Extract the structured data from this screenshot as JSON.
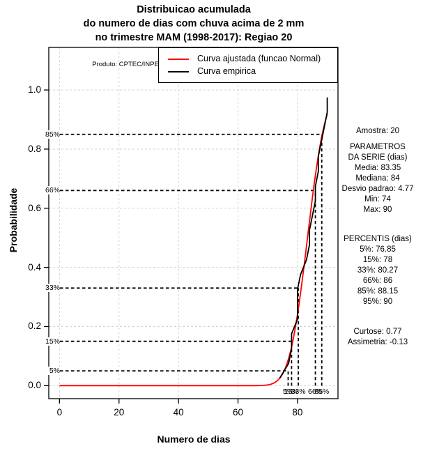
{
  "title": {
    "line1": "Distribuicao acumulada",
    "line2": "do numero de dias com chuva acima de 2 mm",
    "line3": "no trimestre MAM (1998-2017): Regiao 20"
  },
  "axes": {
    "xlabel": "Numero de dias",
    "ylabel": "Probabilidade",
    "x_tick_labels": [
      "0",
      "20",
      "40",
      "60",
      "80"
    ],
    "y_tick_labels": [
      "0.0",
      "0.2",
      "0.4",
      "0.6",
      "0.8",
      "1.0"
    ]
  },
  "legend": {
    "items": [
      {
        "label": "Curva ajustada (funcao Normal)",
        "color": "#ff0000"
      },
      {
        "label": "Curva empirica",
        "color": "#000000"
      }
    ]
  },
  "watermark": "Produto: CPTEC/INPE",
  "side_panel": {
    "amostra": "Amostra: 20",
    "parametros_header1": "PARAMETROS",
    "parametros_header2": "DA SERIE (dias)",
    "parametros": [
      "Media: 83.35",
      "Mediana: 84",
      "Desvio padrao: 4.77",
      "Min: 74",
      "Max: 90"
    ],
    "percentis_header": "PERCENTIS (dias)",
    "percentis": [
      "5%: 76.85",
      "15%: 78",
      "33%: 80.27",
      "66%: 86",
      "85%: 88.15",
      "95%: 90"
    ],
    "moments": [
      "Curtose: 0.77",
      "Assimetria: -0.13"
    ]
  },
  "colors": {
    "fitted": "#ff0000",
    "empirical": "#000000",
    "grid": "#d3d3d3",
    "guide": "#000000",
    "background": "#ffffff"
  },
  "chart_data": {
    "type": "line",
    "title": "Distribuicao acumulada do numero de dias com chuva acima de 2 mm no trimestre MAM (1998-2017): Regiao 20",
    "xlabel": "Numero de dias",
    "ylabel": "Probabilidade",
    "xlim": [
      0,
      90
    ],
    "ylim": [
      0,
      1
    ],
    "x_ticks": [
      0,
      20,
      40,
      60,
      80
    ],
    "y_ticks": [
      0,
      0.2,
      0.4,
      0.6,
      0.8,
      1.0
    ],
    "grid": true,
    "legend_position": "top",
    "series": [
      {
        "name": "Curva ajustada (funcao Normal)",
        "curve": "normal_cdf",
        "color": "#ff0000",
        "mean": 83.35,
        "sd": 4.77,
        "x_start": 0,
        "x_end": 90.4
      },
      {
        "name": "Curva empirica",
        "curve": "empirical_cdf",
        "color": "#000000",
        "points": [
          [
            74,
            0.025
          ],
          [
            77,
            0.075
          ],
          [
            78,
            0.125
          ],
          [
            78,
            0.175
          ],
          [
            80,
            0.225
          ],
          [
            80,
            0.275
          ],
          [
            80,
            0.325
          ],
          [
            81,
            0.375
          ],
          [
            83,
            0.425
          ],
          [
            84,
            0.475
          ],
          [
            84,
            0.525
          ],
          [
            85,
            0.575
          ],
          [
            86,
            0.625
          ],
          [
            86,
            0.675
          ],
          [
            87,
            0.725
          ],
          [
            87,
            0.775
          ],
          [
            88,
            0.825
          ],
          [
            89,
            0.875
          ],
          [
            90,
            0.925
          ],
          [
            90,
            0.975
          ]
        ]
      }
    ],
    "percentile_guides": [
      {
        "label": "5%",
        "p": 0.05,
        "day": 76.85
      },
      {
        "label": "15%",
        "p": 0.15,
        "day": 78
      },
      {
        "label": "33%",
        "p": 0.33,
        "day": 80.27
      },
      {
        "label": "66%",
        "p": 0.66,
        "day": 86
      },
      {
        "label": "85%",
        "p": 0.85,
        "day": 88.15
      }
    ],
    "stats": {
      "amostra": 20,
      "media": 83.35,
      "mediana": 84,
      "desvio_padrao": 4.77,
      "min": 74,
      "max": 90,
      "percentis": {
        "5": 76.85,
        "15": 78,
        "33": 80.27,
        "66": 86,
        "85": 88.15,
        "95": 90
      },
      "curtose": 0.77,
      "assimetria": -0.13
    }
  }
}
